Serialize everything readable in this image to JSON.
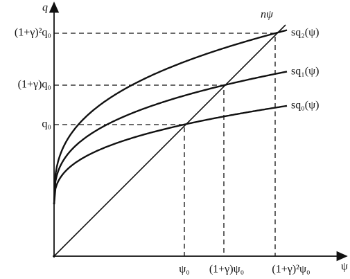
{
  "axes": {
    "y_label": "q",
    "x_label": "ψ"
  },
  "y_ticks": [
    "(1+γ)²q₀",
    "(1+γ)q₀",
    "q₀"
  ],
  "x_ticks": [
    "ψ₀",
    "(1+γ)ψ₀",
    "(1+γ)²ψ₀"
  ],
  "curves": [
    "nψ",
    "sq₂(ψ)",
    "sq₁(ψ)",
    "sq₀(ψ)"
  ]
}
